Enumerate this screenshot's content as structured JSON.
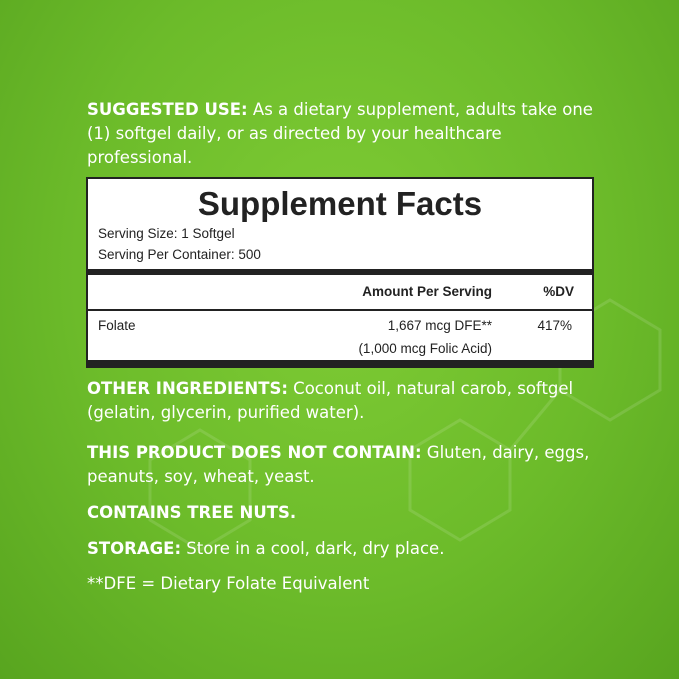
{
  "suggested_use": {
    "label": "SUGGESTED USE:",
    "text": " As a dietary supplement, adults take one (1) softgel daily, or as directed by your healthcare professional."
  },
  "facts": {
    "title": "Supplement Facts",
    "serving_size": "Serving Size: 1 Softgel",
    "servings_per_container": "Serving Per Container: 500",
    "header_amount": "Amount Per Serving",
    "header_dv": "%DV",
    "rows": [
      {
        "name": "Folate",
        "amount": "1,667 mcg DFE**",
        "amount_sub": "(1,000 mcg Folic Acid)",
        "dv": "417%"
      }
    ]
  },
  "other_ingredients": {
    "label": "OTHER INGREDIENTS:",
    "text": " Coconut oil, natural carob, softgel (gelatin, glycerin, purified water)."
  },
  "does_not_contain": {
    "label": "THIS PRODUCT DOES NOT CONTAIN:",
    "text": " Gluten, dairy, eggs, peanuts, soy, wheat, yeast."
  },
  "contains": "CONTAINS TREE NUTS.",
  "storage": {
    "label": "STORAGE:",
    "text": " Store in a cool, dark, dry place."
  },
  "footnote": "**DFE = Dietary Folate Equivalent",
  "colors": {
    "background": "#6cbb2a",
    "text": "#ffffff"
  }
}
